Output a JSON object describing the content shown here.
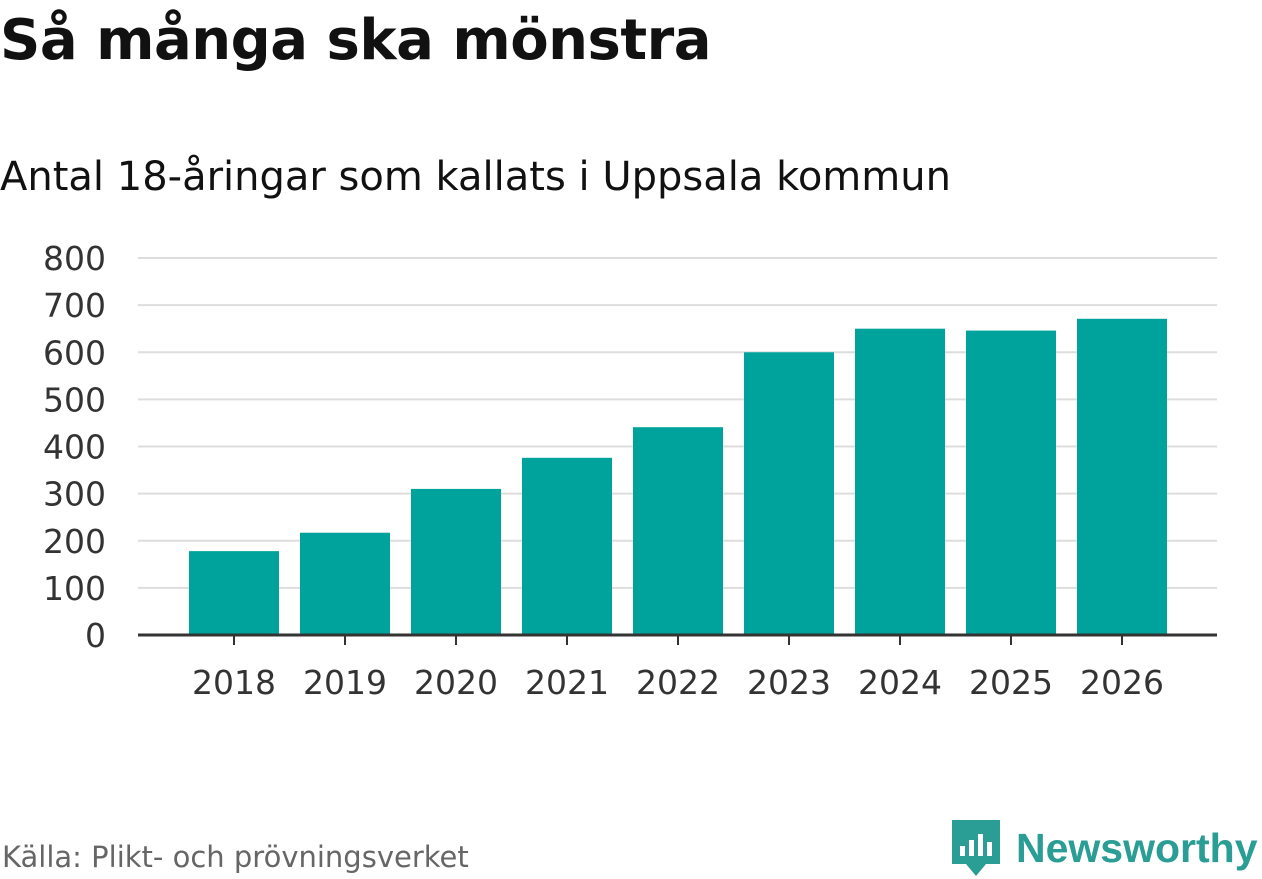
{
  "colors": {
    "bar": "#00a39b",
    "grid": "#dddddd",
    "axis": "#333333",
    "tick_text": "#333333",
    "brand": "#2a9d94"
  },
  "chart_data": {
    "type": "bar",
    "title": "Så många ska mönstra",
    "subtitle": "Antal 18-åringar som kallats i Uppsala kommun",
    "xlabel": "",
    "ylabel": "",
    "categories": [
      "2018",
      "2019",
      "2020",
      "2021",
      "2022",
      "2023",
      "2024",
      "2025",
      "2026"
    ],
    "values": [
      178,
      217,
      310,
      376,
      441,
      600,
      650,
      646,
      671
    ],
    "ylim": [
      0,
      800
    ],
    "yticks": [
      0,
      100,
      200,
      300,
      400,
      500,
      600,
      700,
      800
    ],
    "grid": true,
    "legend": "none"
  },
  "footer": {
    "source": "Källa: Plikt- och prövningsverket",
    "brand": "Newsworthy",
    "brand_icon": "newsworthy-logo-icon"
  }
}
